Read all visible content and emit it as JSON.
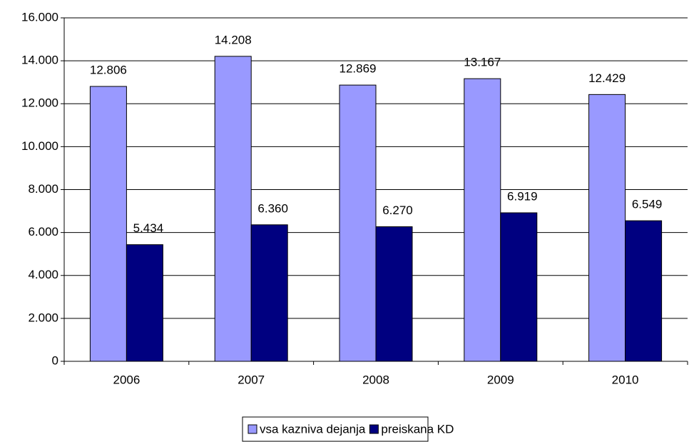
{
  "chart_data": {
    "type": "bar",
    "categories": [
      "2006",
      "2007",
      "2008",
      "2009",
      "2010"
    ],
    "series": [
      {
        "name": "vsa kazniva dejanja",
        "color": "#9999ff",
        "values": [
          12806,
          14208,
          12869,
          13167,
          12429
        ],
        "value_labels": [
          "12.806",
          "14.208",
          "12.869",
          "13.167",
          "12.429"
        ]
      },
      {
        "name": "preiskana KD",
        "color": "#000080",
        "values": [
          5434,
          6360,
          6270,
          6919,
          6549
        ],
        "value_labels": [
          "5.434",
          "6.360",
          "6.270",
          "6.919",
          "6.549"
        ]
      }
    ],
    "ylim": [
      0,
      16000
    ],
    "yticks": [
      0,
      {
        "value": 2000,
        "label": "2.000"
      },
      {
        "value": 4000,
        "label": "4.000"
      },
      {
        "value": 6000,
        "label": "6.000"
      },
      {
        "value": 8000,
        "label": "8.000"
      },
      {
        "value": 10000,
        "label": "10.000"
      },
      {
        "value": 12000,
        "label": "12.000"
      },
      {
        "value": 14000,
        "label": "14.000"
      },
      {
        "value": 16000,
        "label": "16.000"
      }
    ],
    "grid": true,
    "legend": "bottom"
  }
}
